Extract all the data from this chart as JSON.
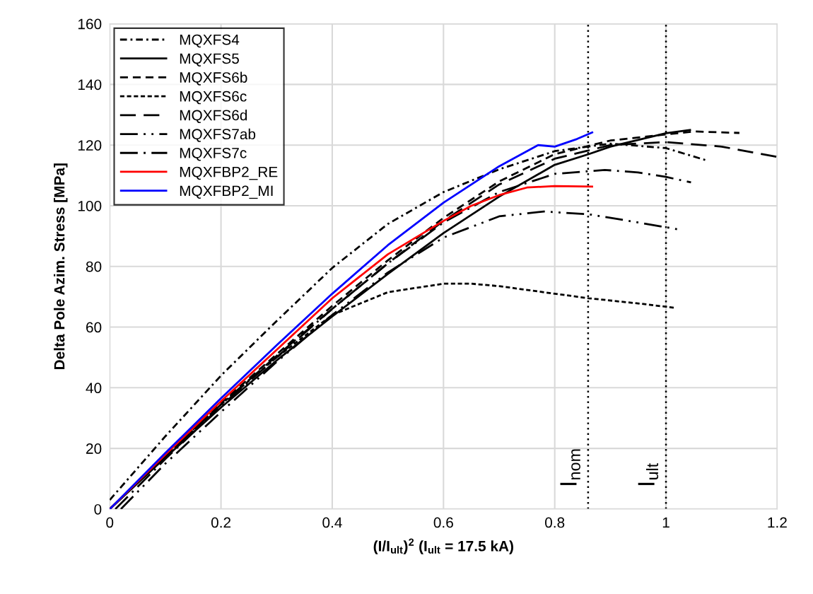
{
  "chart_data": {
    "type": "line",
    "xlabel": "(I/I$_{ult}$)$^{2}$ (I$_{ult}$ = 17.5 kA)",
    "ylabel": "Delta Pole Azim. Stress [MPa]",
    "xlim": [
      0,
      1.2
    ],
    "xticks": [
      0,
      0.2,
      0.4,
      0.6,
      0.8,
      1,
      1.2
    ],
    "ylim": [
      0,
      160
    ],
    "yticks": [
      0,
      20,
      40,
      60,
      80,
      100,
      120,
      140,
      160
    ],
    "grid": true,
    "legend": "top left",
    "marker": "none",
    "series": [
      {
        "name": "MQXFS4",
        "color": "#000000",
        "line_style": "dashdot",
        "x": [
          0,
          0.1,
          0.2,
          0.3,
          0.4,
          0.5,
          0.6,
          0.7,
          0.8,
          0.9,
          1.0,
          1.072
        ],
        "values": [
          3,
          24,
          44,
          62,
          79.5,
          94,
          104.5,
          112,
          118,
          120.5,
          119,
          115
        ]
      },
      {
        "name": "MQXFS5",
        "color": "#000000",
        "line_style": "solid",
        "x": [
          0,
          0.1,
          0.2,
          0.3,
          0.4,
          0.5,
          0.6,
          0.7,
          0.8,
          0.861,
          0.9,
          1.0,
          1.045
        ],
        "values": [
          0,
          17,
          33.5,
          49,
          63.5,
          77.5,
          91,
          103,
          113.5,
          117,
          119.5,
          123.9,
          125
        ]
      },
      {
        "name": "MQXFS6b",
        "color": "#000000",
        "line_style": "dashed",
        "x": [
          0,
          0.1,
          0.2,
          0.3,
          0.4,
          0.5,
          0.6,
          0.7,
          0.8,
          0.9,
          1.0,
          1.05,
          1.132
        ],
        "values": [
          0,
          17.5,
          35,
          51,
          67,
          82,
          96,
          108,
          117,
          121.5,
          123.5,
          124.5,
          124
        ]
      },
      {
        "name": "MQXFS6c",
        "color": "#000000",
        "line_style": "shortdash",
        "x": [
          0,
          0.1,
          0.2,
          0.3,
          0.4,
          0.5,
          0.6,
          0.65,
          0.7,
          0.8,
          0.861,
          0.95,
          1.018
        ],
        "values": [
          0,
          17.5,
          34.5,
          50,
          64,
          71.5,
          74.3,
          74.3,
          73.5,
          71,
          69.5,
          67.8,
          66.3
        ]
      },
      {
        "name": "MQXFS6d",
        "color": "#000000",
        "line_style": "longdash",
        "x": [
          0,
          0.1,
          0.2,
          0.3,
          0.4,
          0.5,
          0.6,
          0.7,
          0.8,
          0.9,
          1.0,
          1.1,
          1.2
        ],
        "values": [
          0,
          17.5,
          34.5,
          50.5,
          66,
          81,
          95,
          107,
          115.5,
          120,
          121,
          119.5,
          116.1
        ]
      },
      {
        "name": "MQXFS7ab",
        "color": "#000000",
        "line_style": "longdashdotdot",
        "x": [
          0.02,
          0.1,
          0.2,
          0.3,
          0.4,
          0.5,
          0.6,
          0.7,
          0.78,
          0.861,
          0.95,
          1.022
        ],
        "values": [
          0,
          15,
          32,
          48.5,
          64,
          78,
          89.5,
          96.5,
          98.1,
          97.2,
          94.5,
          92.2
        ]
      },
      {
        "name": "MQXFS7c",
        "color": "#000000",
        "line_style": "longdashdot",
        "x": [
          0.01,
          0.1,
          0.2,
          0.3,
          0.4,
          0.5,
          0.6,
          0.7,
          0.8,
          0.89,
          0.95,
          1.0,
          1.045
        ],
        "values": [
          0,
          16.5,
          34,
          50,
          66,
          81,
          94.5,
          104.5,
          110.5,
          111.8,
          111,
          109.5,
          107.7
        ]
      },
      {
        "name": "MQXFBP2_RE",
        "color": "#ff0000",
        "line_style": "solid",
        "x": [
          0,
          0.1,
          0.2,
          0.3,
          0.4,
          0.5,
          0.6,
          0.65,
          0.7,
          0.75,
          0.8,
          0.869
        ],
        "values": [
          0,
          18,
          35.5,
          52.5,
          69.5,
          84,
          95,
          100,
          103.5,
          106,
          106.5,
          106.3
        ]
      },
      {
        "name": "MQXFBP2_MI",
        "color": "#0000ff",
        "line_style": "solid",
        "x": [
          0,
          0.1,
          0.2,
          0.3,
          0.4,
          0.5,
          0.6,
          0.7,
          0.77,
          0.8,
          0.84,
          0.869
        ],
        "values": [
          0,
          18.5,
          36.5,
          54,
          71,
          87,
          101,
          113,
          120,
          119.5,
          122,
          124.3
        ]
      }
    ],
    "ref_lines": [
      {
        "axis": "x",
        "value": 0.86,
        "label": "I$_{nom}$",
        "color": "#000000",
        "line_style": "dotted"
      },
      {
        "axis": "x",
        "value": 1,
        "label": "I$_{ult}$",
        "color": "#000000",
        "line_style": "dotted"
      }
    ]
  }
}
